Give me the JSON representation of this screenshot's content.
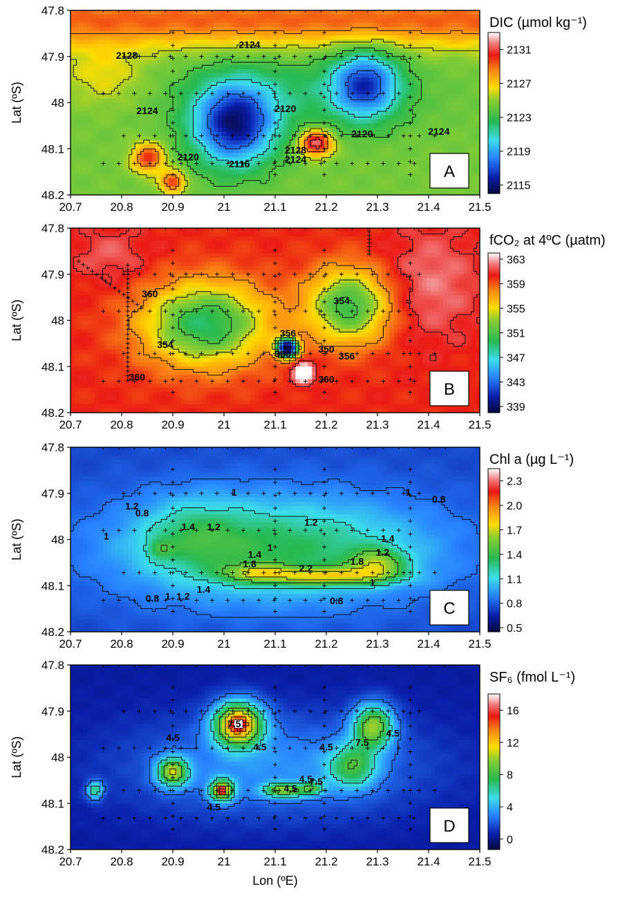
{
  "chart_data": [
    {
      "type": "heatmap",
      "panel": "A",
      "colorbar_title": "DIC (µmol kg⁻¹)",
      "colorbar_ticks": [
        2131,
        2127,
        2123,
        2119,
        2115
      ],
      "color_range": [
        2114,
        2133
      ],
      "contour_labels": [
        {
          "lon": 20.81,
          "lat": 47.905,
          "text": "2128"
        },
        {
          "lon": 21.05,
          "lat": 47.882,
          "text": "2124"
        },
        {
          "lon": 20.85,
          "lat": 48.025,
          "text": "2124"
        },
        {
          "lon": 21.12,
          "lat": 48.02,
          "text": "2120"
        },
        {
          "lon": 20.93,
          "lat": 48.125,
          "text": "2120"
        },
        {
          "lon": 21.03,
          "lat": 48.14,
          "text": "2116"
        },
        {
          "lon": 21.14,
          "lat": 48.11,
          "text": "2128"
        },
        {
          "lon": 21.14,
          "lat": 48.13,
          "text": "2124"
        },
        {
          "lon": 21.27,
          "lat": 48.075,
          "text": "2120"
        },
        {
          "lon": 21.42,
          "lat": 48.07,
          "text": "2124"
        }
      ]
    },
    {
      "type": "heatmap",
      "panel": "B",
      "colorbar_title": "fCO₂ at 4ºC (µatm)",
      "colorbar_ticks": [
        363,
        359,
        355,
        351,
        347,
        343,
        339
      ],
      "color_range": [
        338,
        364
      ],
      "contour_labels": [
        {
          "lon": 20.855,
          "lat": 47.95,
          "text": "360"
        },
        {
          "lon": 21.23,
          "lat": 47.965,
          "text": "354"
        },
        {
          "lon": 21.125,
          "lat": 48.035,
          "text": "356"
        },
        {
          "lon": 20.885,
          "lat": 48.06,
          "text": "354"
        },
        {
          "lon": 21.2,
          "lat": 48.07,
          "text": "350"
        },
        {
          "lon": 21.24,
          "lat": 48.085,
          "text": "356"
        },
        {
          "lon": 21.115,
          "lat": 48.08,
          "text": "360"
        },
        {
          "lon": 20.83,
          "lat": 48.13,
          "text": "360"
        },
        {
          "lon": 21.2,
          "lat": 48.135,
          "text": "360"
        }
      ]
    },
    {
      "type": "heatmap",
      "panel": "C",
      "colorbar_title": "Chl a (µg L⁻¹)",
      "colorbar_ticks": [
        "2.3",
        "2.0",
        "1.7",
        "1.4",
        "1.1",
        "0.8",
        "0.5"
      ],
      "color_range": [
        0.45,
        2.45
      ],
      "contour_labels": [
        {
          "lon": 21.02,
          "lat": 47.905,
          "text": "1"
        },
        {
          "lon": 21.36,
          "lat": 47.905,
          "text": "1"
        },
        {
          "lon": 21.42,
          "lat": 47.92,
          "text": "0.8"
        },
        {
          "lon": 20.84,
          "lat": 47.95,
          "text": "0.8"
        },
        {
          "lon": 20.82,
          "lat": 47.935,
          "text": "1.2"
        },
        {
          "lon": 20.93,
          "lat": 47.98,
          "text": "1.4"
        },
        {
          "lon": 20.98,
          "lat": 47.98,
          "text": "1.2"
        },
        {
          "lon": 21.17,
          "lat": 47.97,
          "text": "1.2"
        },
        {
          "lon": 21.32,
          "lat": 48.005,
          "text": "1.4"
        },
        {
          "lon": 21.31,
          "lat": 48.035,
          "text": "1.2"
        },
        {
          "lon": 20.77,
          "lat": 48.0,
          "text": "1"
        },
        {
          "lon": 21.05,
          "lat": 48.06,
          "text": "1.8"
        },
        {
          "lon": 21.06,
          "lat": 48.04,
          "text": "1.4"
        },
        {
          "lon": 21.09,
          "lat": 48.025,
          "text": "1"
        },
        {
          "lon": 21.16,
          "lat": 48.07,
          "text": "2.2"
        },
        {
          "lon": 21.26,
          "lat": 48.055,
          "text": "1.8"
        },
        {
          "lon": 21.29,
          "lat": 48.1,
          "text": "1"
        },
        {
          "lon": 21.22,
          "lat": 48.14,
          "text": "0.8"
        },
        {
          "lon": 20.86,
          "lat": 48.135,
          "text": "0.8"
        },
        {
          "lon": 20.89,
          "lat": 48.13,
          "text": "1"
        },
        {
          "lon": 20.92,
          "lat": 48.13,
          "text": "1.2"
        },
        {
          "lon": 20.96,
          "lat": 48.115,
          "text": "1.4"
        }
      ]
    },
    {
      "type": "heatmap",
      "panel": "D",
      "colorbar_title": "SF₆ (fmol L⁻¹)",
      "colorbar_ticks": [
        16,
        12,
        8,
        4,
        0
      ],
      "color_range": [
        -1.3,
        18
      ],
      "contour_labels": [
        {
          "lon": 20.9,
          "lat": 47.965,
          "text": "4.5"
        },
        {
          "lon": 21.02,
          "lat": 47.935,
          "text": "7.5"
        },
        {
          "lon": 21.07,
          "lat": 47.985,
          "text": "4.5"
        },
        {
          "lon": 21.27,
          "lat": 47.975,
          "text": "7.5"
        },
        {
          "lon": 21.33,
          "lat": 47.955,
          "text": "4.5"
        },
        {
          "lon": 21.2,
          "lat": 47.985,
          "text": "4.5"
        },
        {
          "lon": 21.16,
          "lat": 48.055,
          "text": "4.5"
        },
        {
          "lon": 21.13,
          "lat": 48.075,
          "text": "4.5"
        },
        {
          "lon": 21.18,
          "lat": 48.06,
          "text": "7.5"
        },
        {
          "lon": 20.98,
          "lat": 48.115,
          "text": "4.5"
        }
      ]
    }
  ],
  "axes": {
    "xlabel": "Lon (ºE)",
    "ylabel": "Lat (ºS)",
    "xticks": [
      "20.7",
      "20.8",
      "20.9",
      "21",
      "21.1",
      "21.2",
      "21.3",
      "21.4",
      "21.5"
    ],
    "yticks": [
      "47.8",
      "47.9",
      "48",
      "48.1",
      "48.2"
    ],
    "xlim": [
      20.7,
      21.5
    ],
    "ylim": [
      47.8,
      48.2
    ]
  },
  "panel_letters": [
    "A",
    "B",
    "C",
    "D"
  ],
  "colors": {
    "background": "#ffffff",
    "axis": "#000000",
    "contour": "#000000"
  }
}
